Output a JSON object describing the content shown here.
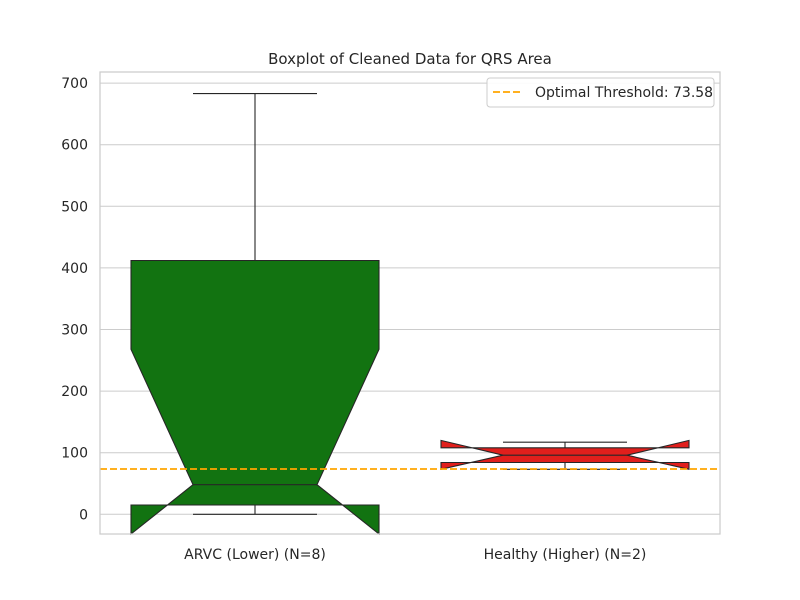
{
  "chart_data": {
    "type": "boxplot",
    "title": "Boxplot of Cleaned Data for QRS Area",
    "xlabel": "",
    "ylabel": "",
    "ylim": [
      -32,
      718
    ],
    "yticks": [
      0,
      100,
      200,
      300,
      400,
      500,
      600,
      700
    ],
    "grid": "horizontal",
    "legend_position": "top-right",
    "notched": true,
    "groups": [
      {
        "label": "ARVC (Lower) (N=8)",
        "color": "#127311",
        "q1": 15,
        "median": 48,
        "q3": 412,
        "notch_low": -32,
        "notch_high": 268,
        "whisker_low": 0,
        "whisker_high": 683
      },
      {
        "label": "Healthy (Higher) (N=2)",
        "color": "#e11f1c",
        "q1": 84,
        "median": 96,
        "q3": 108,
        "notch_low": 73,
        "notch_high": 120,
        "whisker_low": 73,
        "whisker_high": 117
      }
    ],
    "threshold": {
      "label": "Optimal Threshold: 73.58",
      "value": 73.58,
      "color": "#ffa500"
    }
  }
}
